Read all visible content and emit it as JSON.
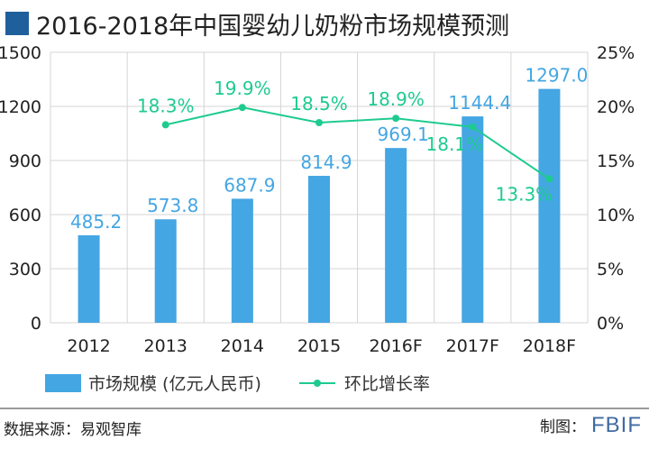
{
  "title": "2016-2018年中国婴幼儿奶粉市场规模预测",
  "chart_data": {
    "type": "bar",
    "categories": [
      "2012",
      "2013",
      "2014",
      "2015",
      "2016F",
      "2017F",
      "2018F"
    ],
    "series": [
      {
        "name": "市场规模 (亿元人民币)",
        "type": "bar",
        "axis": "left",
        "values": [
          485.2,
          573.8,
          687.9,
          814.9,
          969.1,
          1144.4,
          1297.0
        ],
        "labels": [
          "485.2",
          "573.8",
          "687.9",
          "814.9",
          "969.1",
          "1144.4",
          "1297.0"
        ]
      },
      {
        "name": "环比增长率",
        "type": "line",
        "axis": "right",
        "values": [
          null,
          18.3,
          19.9,
          18.5,
          18.9,
          18.1,
          13.3
        ],
        "labels": [
          "",
          "18.3%",
          "19.9%",
          "18.5%",
          "18.9%",
          "18.1%",
          "13.3%"
        ]
      }
    ],
    "y_left": {
      "min": 0,
      "max": 1500,
      "ticks": [
        "0",
        "300",
        "600",
        "900",
        "1200",
        "1500"
      ]
    },
    "y_right": {
      "min": 0,
      "max": 25,
      "ticks": [
        "0%",
        "5%",
        "10%",
        "15%",
        "20%",
        "25%"
      ]
    },
    "grid": true,
    "legend": "bottom",
    "colors": {
      "bar": "#44a6e3",
      "line": "#1ecb8f",
      "grid": "#d4d4d4",
      "title_marker": "#1f5f9c",
      "brand": "#3f6aa1"
    }
  },
  "footer": {
    "source": "数据来源：易观智库",
    "credit_label": "制图：",
    "credit_brand": "FBIF"
  }
}
